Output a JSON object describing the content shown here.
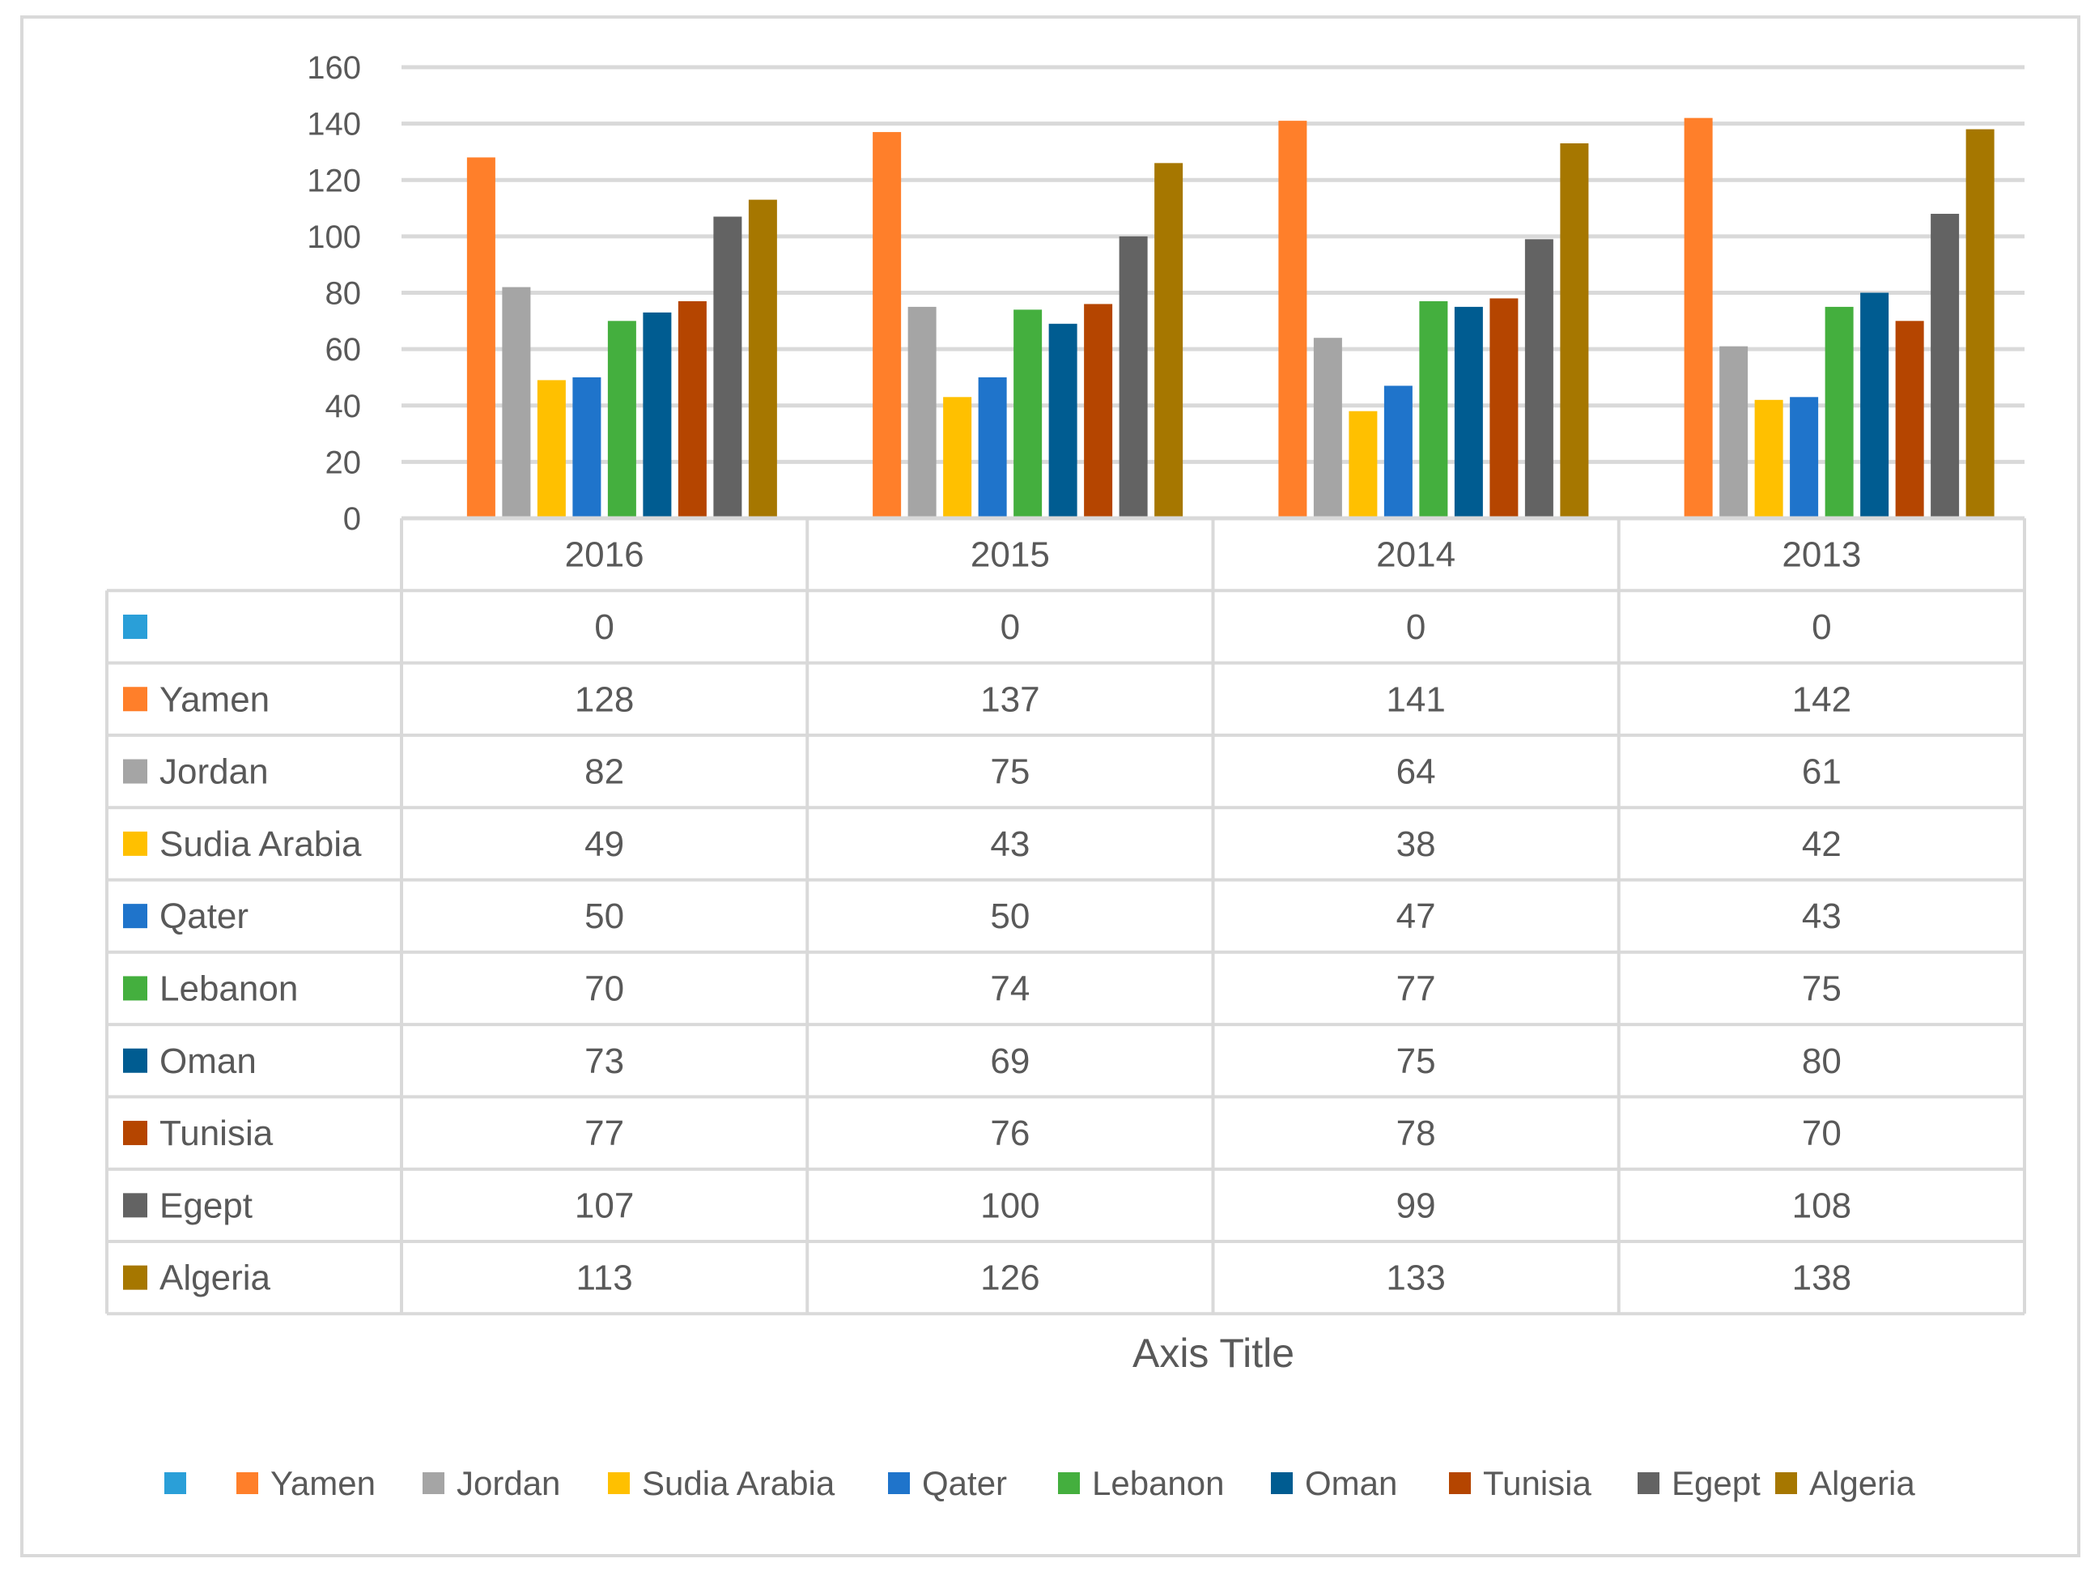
{
  "chart_data": {
    "type": "bar",
    "categories": [
      "2016",
      "2015",
      "2014",
      "2013"
    ],
    "series": [
      {
        "name": "",
        "color": "#2A9FD8",
        "values": [
          0,
          0,
          0,
          0
        ]
      },
      {
        "name": "Yamen",
        "color": "#FF7F2A",
        "values": [
          128,
          137,
          141,
          142
        ]
      },
      {
        "name": "Jordan",
        "color": "#A5A5A5",
        "values": [
          82,
          75,
          64,
          61
        ]
      },
      {
        "name": "Sudia Arabia",
        "color": "#FFC000",
        "values": [
          49,
          43,
          38,
          42
        ]
      },
      {
        "name": "Qater",
        "color": "#1F74CB",
        "values": [
          50,
          50,
          47,
          43
        ]
      },
      {
        "name": "Lebanon",
        "color": "#44AF3E",
        "values": [
          70,
          74,
          77,
          75
        ]
      },
      {
        "name": "Oman",
        "color": "#005C91",
        "values": [
          73,
          69,
          75,
          80
        ]
      },
      {
        "name": "Tunisia",
        "color": "#B54500",
        "values": [
          77,
          76,
          78,
          70
        ]
      },
      {
        "name": "Egept",
        "color": "#636363",
        "values": [
          107,
          100,
          99,
          108
        ]
      },
      {
        "name": "Algeria",
        "color": "#A67700",
        "values": [
          113,
          126,
          133,
          138
        ]
      }
    ],
    "yticks": [
      "0",
      "20",
      "40",
      "60",
      "80",
      "100",
      "120",
      "140",
      "160"
    ],
    "ylim": [
      0,
      160
    ],
    "xlabel": "Axis Title",
    "ylabel": "",
    "grid": true,
    "data_table": true,
    "legend_position": "bottom"
  }
}
